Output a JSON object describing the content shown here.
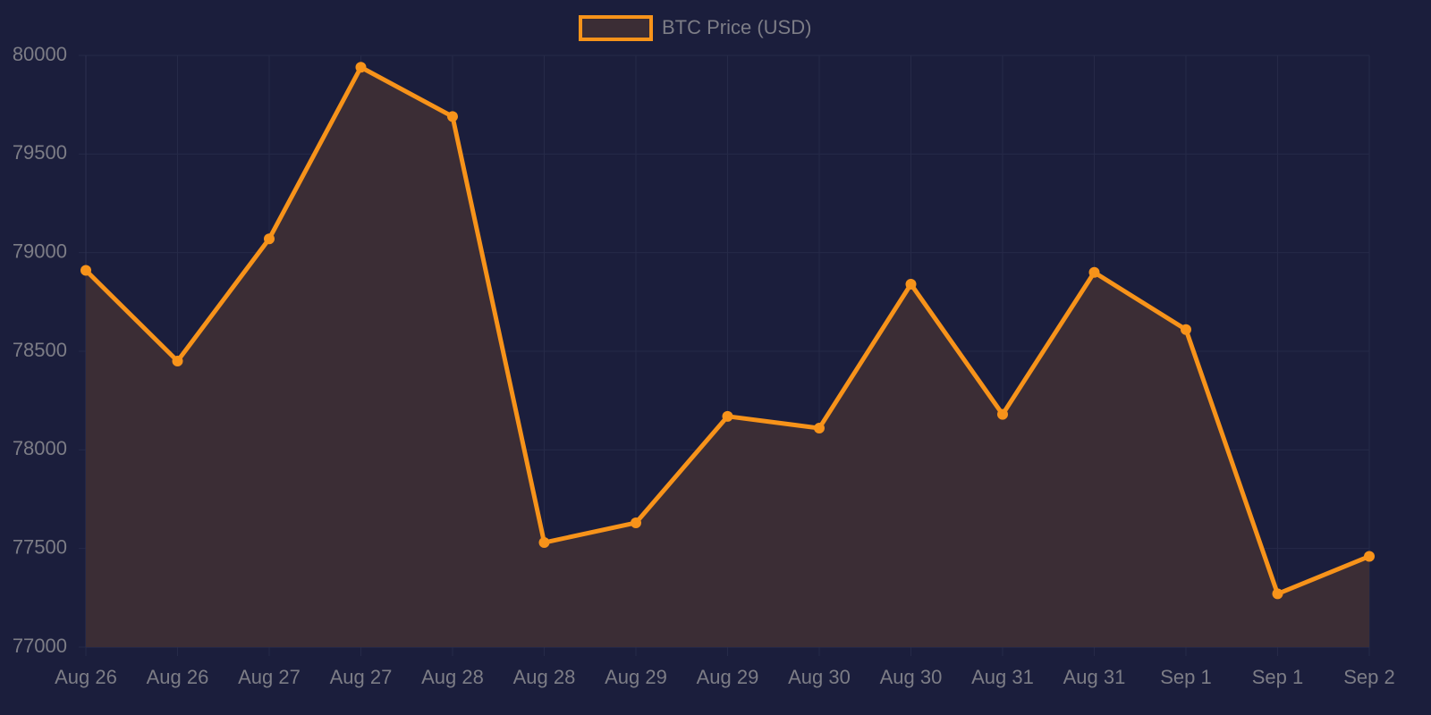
{
  "chart_data": {
    "type": "line",
    "categories": [
      "Aug 26",
      "Aug 26",
      "Aug 27",
      "Aug 27",
      "Aug 28",
      "Aug 28",
      "Aug 29",
      "Aug 29",
      "Aug 30",
      "Aug 30",
      "Aug 31",
      "Aug 31",
      "Sep 1",
      "Sep 1",
      "Sep 2"
    ],
    "series": [
      {
        "name": "BTC Price (USD)",
        "color": "#f7931a",
        "fill": "#3b2d35",
        "values": [
          78910,
          78450,
          79070,
          79940,
          79690,
          77530,
          77630,
          78170,
          78110,
          78840,
          78180,
          78900,
          78610,
          77270,
          77460
        ]
      }
    ],
    "ylim": [
      77000,
      80000
    ],
    "yticks": [
      77000,
      77500,
      78000,
      78500,
      79000,
      79500,
      80000
    ],
    "grid": true,
    "legend": "top"
  }
}
